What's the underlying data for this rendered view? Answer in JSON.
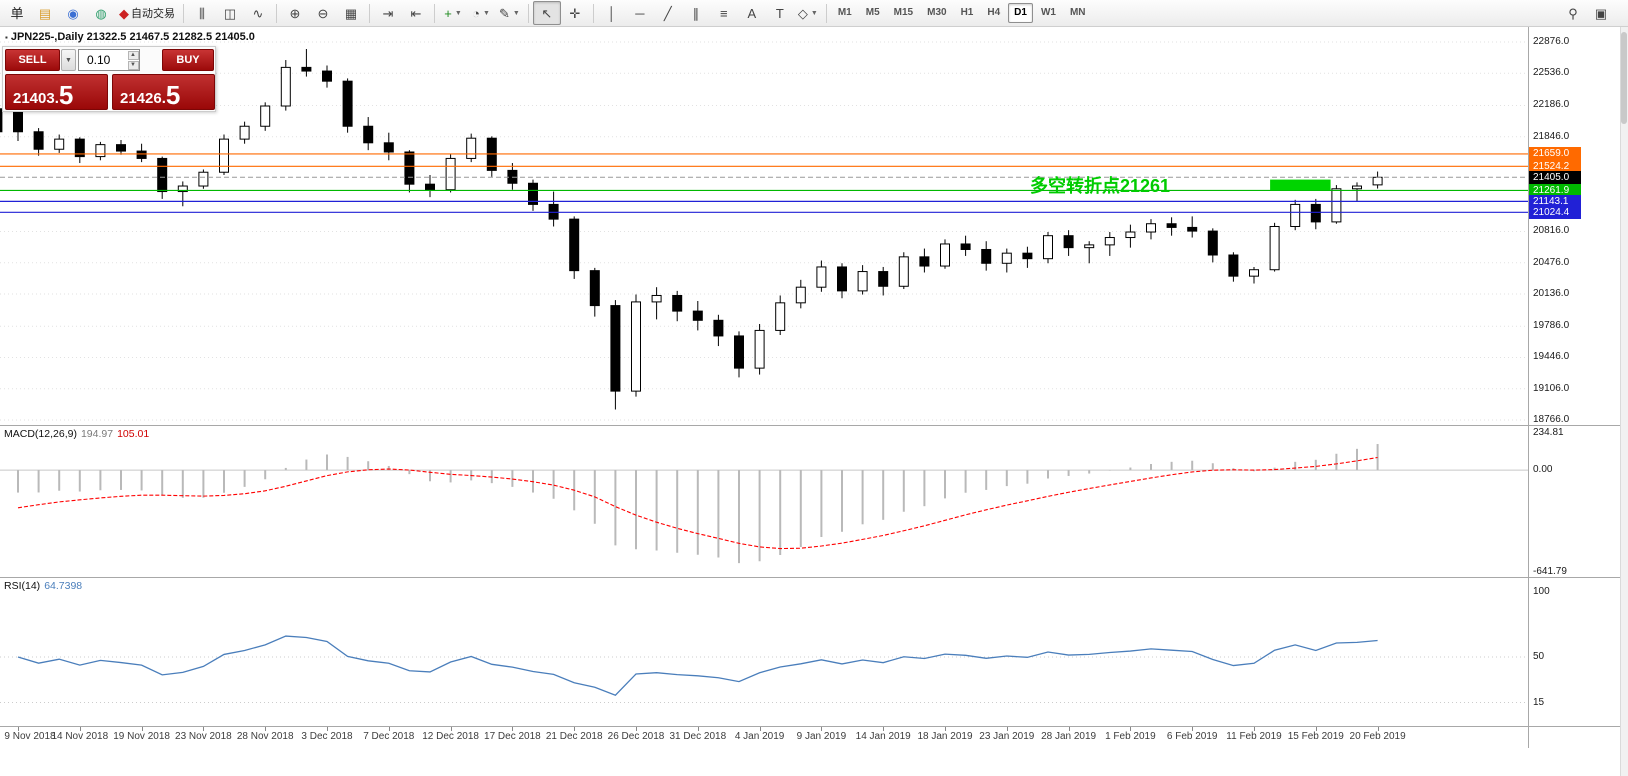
{
  "window": {
    "bg": "#ffffff"
  },
  "symbol_info": {
    "text": "JPN225-,Daily  21322.5 21467.5 21282.5 21405.0"
  },
  "annotation": {
    "text": "多空转折点21261",
    "color": "#00cc00"
  },
  "trade_panel": {
    "sell_label": "SELL",
    "buy_label": "BUY",
    "volume": "0.10",
    "bid": "21403.5",
    "ask": "21426.5",
    "bid_main": "21403.",
    "bid_big": "5",
    "ask_main": "21426.",
    "ask_big": "5"
  },
  "toolbar": {
    "groups": [
      {
        "items": [
          {
            "name": "new-order-button",
            "glyph": "单",
            "glyph_color": "#222222"
          },
          {
            "name": "market-watch-icon",
            "glyph": "▤",
            "glyph_color": "#d99c2b"
          },
          {
            "name": "navigator-icon",
            "glyph": "◉",
            "glyph_color": "#3b6fd4"
          },
          {
            "name": "terminal-icon",
            "glyph": "◍",
            "glyph_color": "#2e9e6b"
          },
          {
            "name": "autotrading-button",
            "glyph": "◆",
            "glyph_color": "#cc2222",
            "label": "自动交易"
          }
        ]
      },
      {
        "items": [
          {
            "name": "bar-chart-icon",
            "glyph": "⫼"
          },
          {
            "name": "candlestick-chart-icon",
            "glyph": "◫"
          },
          {
            "name": "line-chart-icon",
            "glyph": "∿"
          }
        ]
      },
      {
        "items": [
          {
            "name": "zoom-in-icon",
            "glyph": "⊕"
          },
          {
            "name": "zoom-out-icon",
            "glyph": "⊖"
          },
          {
            "name": "tile-windows-icon",
            "glyph": "▦"
          }
        ]
      },
      {
        "items": [
          {
            "name": "auto-scroll-icon",
            "glyph": "⇥"
          },
          {
            "name": "chart-shift-icon",
            "glyph": "⇤"
          }
        ]
      },
      {
        "items": [
          {
            "name": "indicators-icon",
            "glyph": "+",
            "glyph_color": "#1d8a1d",
            "dropdown": true
          },
          {
            "name": "periods-icon",
            "glyph": "◔",
            "dropdown": true
          },
          {
            "name": "templates-icon",
            "glyph": "✎",
            "dropdown": true
          }
        ]
      },
      {
        "items": [
          {
            "name": "cursor-icon",
            "glyph": "↖",
            "active": true
          },
          {
            "name": "crosshair-icon",
            "glyph": "✛"
          }
        ]
      },
      {
        "items": [
          {
            "name": "vertical-line-icon",
            "glyph": "│"
          },
          {
            "name": "horizontal-line-icon",
            "glyph": "─"
          },
          {
            "name": "trendline-icon",
            "glyph": "╱"
          },
          {
            "name": "channel-icon",
            "glyph": "∥"
          },
          {
            "name": "fibonacci-icon",
            "glyph": "≡"
          },
          {
            "name": "text-icon",
            "glyph": "A"
          },
          {
            "name": "label-icon",
            "glyph": "T"
          },
          {
            "name": "shapes-icon",
            "glyph": "◇",
            "dropdown": true
          }
        ]
      }
    ],
    "timeframes": {
      "items": [
        "M1",
        "M5",
        "M15",
        "M30",
        "H1",
        "H4",
        "D1",
        "W1",
        "MN"
      ],
      "active": "D1"
    },
    "right_icons": [
      {
        "name": "search-icon",
        "glyph": "⚲"
      },
      {
        "name": "new-window-icon",
        "glyph": "▣"
      }
    ]
  },
  "chart_data": {
    "type": "candlestick",
    "symbol": "JPN225-",
    "period": "Daily",
    "ohlc_display": {
      "open": "21322.5",
      "high": "21467.5",
      "low": "21282.5",
      "close": "21405.0"
    },
    "y_axis": {
      "top": 22876.0,
      "bottom": 18766.0,
      "labels": [
        "22876.0",
        "22536.0",
        "22186.0",
        "21846.0",
        "20816.0",
        "20476.0",
        "20136.0",
        "19786.0",
        "19446.0",
        "19106.0",
        "18766.0"
      ]
    },
    "x_axis_labels": [
      {
        "text": "9 Nov 2018",
        "index": 0
      },
      {
        "text": "14 Nov 2018",
        "index": 3
      },
      {
        "text": "19 Nov 2018",
        "index": 6
      },
      {
        "text": "23 Nov 2018",
        "index": 9
      },
      {
        "text": "28 Nov 2018",
        "index": 12
      },
      {
        "text": "3 Dec 2018",
        "index": 15
      },
      {
        "text": "7 Dec 2018",
        "index": 18
      },
      {
        "text": "12 Dec 2018",
        "index": 21
      },
      {
        "text": "17 Dec 2018",
        "index": 24
      },
      {
        "text": "21 Dec 2018",
        "index": 27
      },
      {
        "text": "26 Dec 2018",
        "index": 30
      },
      {
        "text": "31 Dec 2018",
        "index": 33
      },
      {
        "text": "4 Jan 2019",
        "index": 36
      },
      {
        "text": "9 Jan 2019",
        "index": 39
      },
      {
        "text": "14 Jan 2019",
        "index": 42
      },
      {
        "text": "18 Jan 2019",
        "index": 45
      },
      {
        "text": "23 Jan 2019",
        "index": 48
      },
      {
        "text": "28 Jan 2019",
        "index": 51
      },
      {
        "text": "1 Feb 2019",
        "index": 54
      },
      {
        "text": "6 Feb 2019",
        "index": 57
      },
      {
        "text": "11 Feb 2019",
        "index": 60
      },
      {
        "text": "15 Feb 2019",
        "index": 63
      },
      {
        "text": "20 Feb 2019",
        "index": 66
      }
    ],
    "edge_candle": [
      22150,
      22200,
      21860,
      21900
    ],
    "candles": [
      [
        22200,
        22280,
        21800,
        21900
      ],
      [
        21900,
        21940,
        21640,
        21710
      ],
      [
        21710,
        21870,
        21670,
        21820
      ],
      [
        21820,
        21840,
        21560,
        21630
      ],
      [
        21630,
        21790,
        21590,
        21760
      ],
      [
        21760,
        21810,
        21650,
        21690
      ],
      [
        21690,
        21770,
        21570,
        21610
      ],
      [
        21610,
        21630,
        21170,
        21250
      ],
      [
        21250,
        21360,
        21090,
        21310
      ],
      [
        21310,
        21490,
        21280,
        21460
      ],
      [
        21460,
        21870,
        21430,
        21820
      ],
      [
        21820,
        22010,
        21770,
        21960
      ],
      [
        21960,
        22220,
        21910,
        22180
      ],
      [
        22180,
        22680,
        22130,
        22600
      ],
      [
        22600,
        22800,
        22500,
        22560
      ],
      [
        22560,
        22620,
        22380,
        22450
      ],
      [
        22450,
        22480,
        21890,
        21960
      ],
      [
        21960,
        22060,
        21700,
        21780
      ],
      [
        21780,
        21890,
        21590,
        21680
      ],
      [
        21680,
        21700,
        21240,
        21330
      ],
      [
        21330,
        21430,
        21190,
        21270
      ],
      [
        21270,
        21660,
        21240,
        21610
      ],
      [
        21610,
        21880,
        21570,
        21830
      ],
      [
        21830,
        21850,
        21410,
        21480
      ],
      [
        21480,
        21560,
        21270,
        21340
      ],
      [
        21340,
        21380,
        21040,
        21110
      ],
      [
        21110,
        21250,
        20870,
        20950
      ],
      [
        20950,
        20980,
        20300,
        20390
      ],
      [
        20390,
        20420,
        19890,
        20010
      ],
      [
        20010,
        20070,
        18880,
        19080
      ],
      [
        19080,
        20130,
        19020,
        20050
      ],
      [
        20050,
        20210,
        19860,
        20120
      ],
      [
        20120,
        20170,
        19840,
        19950
      ],
      [
        19950,
        20060,
        19740,
        19850
      ],
      [
        19850,
        19910,
        19570,
        19680
      ],
      [
        19680,
        19730,
        19230,
        19330
      ],
      [
        19330,
        19810,
        19260,
        19740
      ],
      [
        19740,
        20120,
        19690,
        20040
      ],
      [
        20040,
        20290,
        19980,
        20210
      ],
      [
        20210,
        20500,
        20160,
        20430
      ],
      [
        20430,
        20470,
        20090,
        20170
      ],
      [
        20170,
        20450,
        20130,
        20380
      ],
      [
        20380,
        20430,
        20120,
        20220
      ],
      [
        20220,
        20590,
        20190,
        20540
      ],
      [
        20540,
        20630,
        20370,
        20440
      ],
      [
        20440,
        20730,
        20410,
        20680
      ],
      [
        20680,
        20770,
        20550,
        20620
      ],
      [
        20620,
        20710,
        20390,
        20470
      ],
      [
        20470,
        20630,
        20370,
        20580
      ],
      [
        20580,
        20650,
        20420,
        20520
      ],
      [
        20520,
        20810,
        20470,
        20770
      ],
      [
        20770,
        20830,
        20550,
        20640
      ],
      [
        20640,
        20710,
        20470,
        20670
      ],
      [
        20670,
        20810,
        20550,
        20750
      ],
      [
        20750,
        20890,
        20640,
        20810
      ],
      [
        20810,
        20950,
        20730,
        20900
      ],
      [
        20900,
        20970,
        20770,
        20860
      ],
      [
        20860,
        20980,
        20750,
        20820
      ],
      [
        20820,
        20850,
        20480,
        20560
      ],
      [
        20560,
        20590,
        20270,
        20330
      ],
      [
        20330,
        20430,
        20250,
        20400
      ],
      [
        20400,
        20910,
        20380,
        20870
      ],
      [
        20870,
        21160,
        20830,
        21110
      ],
      [
        21110,
        21170,
        20840,
        20920
      ],
      [
        20920,
        21320,
        20900,
        21280
      ],
      [
        21280,
        21350,
        21140,
        21310
      ],
      [
        21322.5,
        21467.5,
        21282.5,
        21405
      ]
    ],
    "hlines": [
      {
        "price": 21659.0,
        "label": "21659.0",
        "color": "#ff6a00",
        "style": "solid"
      },
      {
        "price": 21524.2,
        "label": "21524.2",
        "color": "#ff6a00",
        "style": "solid"
      },
      {
        "price": 21405.0,
        "label": "21405.0",
        "color": "#000000",
        "style": "dash",
        "current": true
      },
      {
        "price": 21261.9,
        "label": "21261.9",
        "color": "#00b800",
        "style": "solid"
      },
      {
        "price": 21143.1,
        "label": "21143.1",
        "color": "#2121d6",
        "style": "solid"
      },
      {
        "price": 21024.4,
        "label": "21024.4",
        "color": "#2121d6",
        "style": "solid"
      }
    ],
    "highlight_rect": {
      "start_index": 61,
      "end_index": 63.5,
      "price_top": 21380,
      "price_bottom": 21264,
      "color": "#00d400"
    },
    "macd": {
      "label": "MACD(12,26,9)",
      "value1": "194.97",
      "value2": "105.01",
      "params": [
        12,
        26,
        9
      ],
      "axis_labels": [
        "234.81",
        "0.00",
        "-641.79"
      ],
      "axis": {
        "top": 234.81,
        "bottom": -641.79
      },
      "hist_color": "#b9b9b9",
      "signal_color": "#ff0000"
    },
    "rsi": {
      "label": "RSI(14)",
      "value": "64.7398",
      "period": 14,
      "axis_labels": [
        "100",
        "50",
        "15"
      ],
      "levels": [
        50,
        15
      ],
      "line_color": "#4a7ebb"
    }
  }
}
